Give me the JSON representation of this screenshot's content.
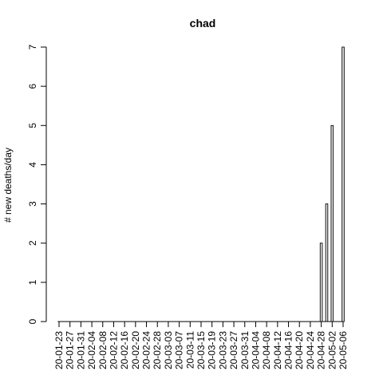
{
  "chart_data": {
    "type": "bar",
    "title": "chad",
    "xlabel": "",
    "ylabel": "# new deaths/day",
    "ylim": [
      0,
      7
    ],
    "yticks": [
      0,
      1,
      2,
      3,
      4,
      5,
      6,
      7
    ],
    "grid": false,
    "start_date": "2020-01-23",
    "categories": [
      "20-01-23",
      "20-01-24",
      "20-01-25",
      "20-01-26",
      "20-01-27",
      "20-01-28",
      "20-01-29",
      "20-01-30",
      "20-01-31",
      "20-02-01",
      "20-02-02",
      "20-02-03",
      "20-02-04",
      "20-02-05",
      "20-02-06",
      "20-02-07",
      "20-02-08",
      "20-02-09",
      "20-02-10",
      "20-02-11",
      "20-02-12",
      "20-02-13",
      "20-02-14",
      "20-02-15",
      "20-02-16",
      "20-02-17",
      "20-02-18",
      "20-02-19",
      "20-02-20",
      "20-02-21",
      "20-02-22",
      "20-02-23",
      "20-02-24",
      "20-02-25",
      "20-02-26",
      "20-02-27",
      "20-02-28",
      "20-02-29",
      "20-03-01",
      "20-03-02",
      "20-03-03",
      "20-03-04",
      "20-03-05",
      "20-03-06",
      "20-03-07",
      "20-03-08",
      "20-03-09",
      "20-03-10",
      "20-03-11",
      "20-03-12",
      "20-03-13",
      "20-03-14",
      "20-03-15",
      "20-03-16",
      "20-03-17",
      "20-03-18",
      "20-03-19",
      "20-03-20",
      "20-03-21",
      "20-03-22",
      "20-03-23",
      "20-03-24",
      "20-03-25",
      "20-03-26",
      "20-03-27",
      "20-03-28",
      "20-03-29",
      "20-03-30",
      "20-03-31",
      "20-04-01",
      "20-04-02",
      "20-04-03",
      "20-04-04",
      "20-04-05",
      "20-04-06",
      "20-04-07",
      "20-04-08",
      "20-04-09",
      "20-04-10",
      "20-04-11",
      "20-04-12",
      "20-04-13",
      "20-04-14",
      "20-04-15",
      "20-04-16",
      "20-04-17",
      "20-04-18",
      "20-04-19",
      "20-04-20",
      "20-04-21",
      "20-04-22",
      "20-04-23",
      "20-04-24",
      "20-04-25",
      "20-04-26",
      "20-04-27",
      "20-04-28",
      "20-04-29",
      "20-04-30",
      "20-05-01",
      "20-05-02",
      "20-05-03",
      "20-05-04",
      "20-05-05",
      "20-05-06"
    ],
    "xtick_labels": [
      "20-01-23",
      "20-01-27",
      "20-01-31",
      "20-02-04",
      "20-02-08",
      "20-02-12",
      "20-02-16",
      "20-02-20",
      "20-02-24",
      "20-02-28",
      "20-03-03",
      "20-03-07",
      "20-03-11",
      "20-03-15",
      "20-03-19",
      "20-03-23",
      "20-03-27",
      "20-03-31",
      "20-04-04",
      "20-04-08",
      "20-04-12",
      "20-04-16",
      "20-04-20",
      "20-04-24",
      "20-04-28",
      "20-05-02",
      "20-05-06"
    ],
    "values": [
      0,
      0,
      0,
      0,
      0,
      0,
      0,
      0,
      0,
      0,
      0,
      0,
      0,
      0,
      0,
      0,
      0,
      0,
      0,
      0,
      0,
      0,
      0,
      0,
      0,
      0,
      0,
      0,
      0,
      0,
      0,
      0,
      0,
      0,
      0,
      0,
      0,
      0,
      0,
      0,
      0,
      0,
      0,
      0,
      0,
      0,
      0,
      0,
      0,
      0,
      0,
      0,
      0,
      0,
      0,
      0,
      0,
      0,
      0,
      0,
      0,
      0,
      0,
      0,
      0,
      0,
      0,
      0,
      0,
      0,
      0,
      0,
      0,
      0,
      0,
      0,
      0,
      0,
      0,
      0,
      0,
      0,
      0,
      0,
      0,
      0,
      0,
      0,
      0,
      0,
      0,
      0,
      0,
      0,
      0,
      0,
      2,
      0,
      3,
      0,
      5,
      0,
      0,
      0,
      7
    ],
    "colors": {
      "bar_fill": "#e6e6e6",
      "bar_stroke": "#000000"
    }
  }
}
